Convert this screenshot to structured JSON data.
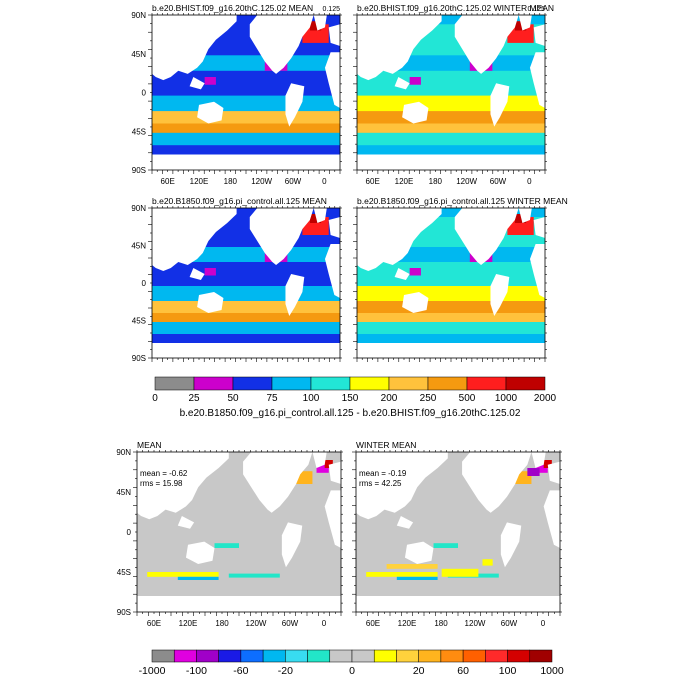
{
  "panels": [
    {
      "title": "b.e20.BHIST.f09_g16.20thC.125.02 MEAN",
      "corner": "0.125"
    },
    {
      "title": "b.e20.BHIST.f09_g16.20thC.125.02 WINTER MEAN",
      "corner": "0.125"
    },
    {
      "title": "b.e20.B1850.f09_g16.pi_control.all.125 MEAN"
    },
    {
      "title": "b.e20.B1850.f09_g16.pi_control.all.125 WINTER MEAN"
    }
  ],
  "diff_panels": [
    {
      "title": "MEAN",
      "mean_text": "mean = -0.62",
      "rms_text": "rms = 15.98"
    },
    {
      "title": "WINTER MEAN",
      "mean_text": "mean = -0.19",
      "rms_text": "rms = 42.25"
    }
  ],
  "lat_labels": [
    "90N",
    "45N",
    "0",
    "45S",
    "90S"
  ],
  "lon_labels": [
    "60E",
    "120E",
    "180",
    "120W",
    "60W",
    "0"
  ],
  "colorbar_top": {
    "labels": [
      "0",
      "25",
      "50",
      "75",
      "100",
      "150",
      "200",
      "250",
      "500",
      "1000",
      "2000"
    ],
    "colors": [
      "#8c8c8c",
      "#cc00cc",
      "#1230e6",
      "#00b8f0",
      "#22e6d6",
      "#ffff00",
      "#ffc23c",
      "#f59a10",
      "#ff1e1e",
      "#bf0000"
    ]
  },
  "diff_title": "b.e20.B1850.f09_g16.pi_control.all.125 - b.e20.BHIST.f09_g16.20thC.125.02",
  "colorbar_bottom": {
    "labels": [
      "-1000",
      "-100",
      "-60",
      "-20",
      "0",
      "20",
      "60",
      "100",
      "1000"
    ],
    "colors": [
      "#8c8c8c",
      "#e000e0",
      "#a000c8",
      "#1a1ae6",
      "#0d6eff",
      "#00b8f0",
      "#38dcf0",
      "#22e6c8",
      "#c8c8c8",
      "#c8c8c8",
      "#ffff00",
      "#ffd23c",
      "#ffb41e",
      "#ff8c10",
      "#ff6000",
      "#ff2a2a",
      "#d40000",
      "#a00000"
    ]
  }
}
